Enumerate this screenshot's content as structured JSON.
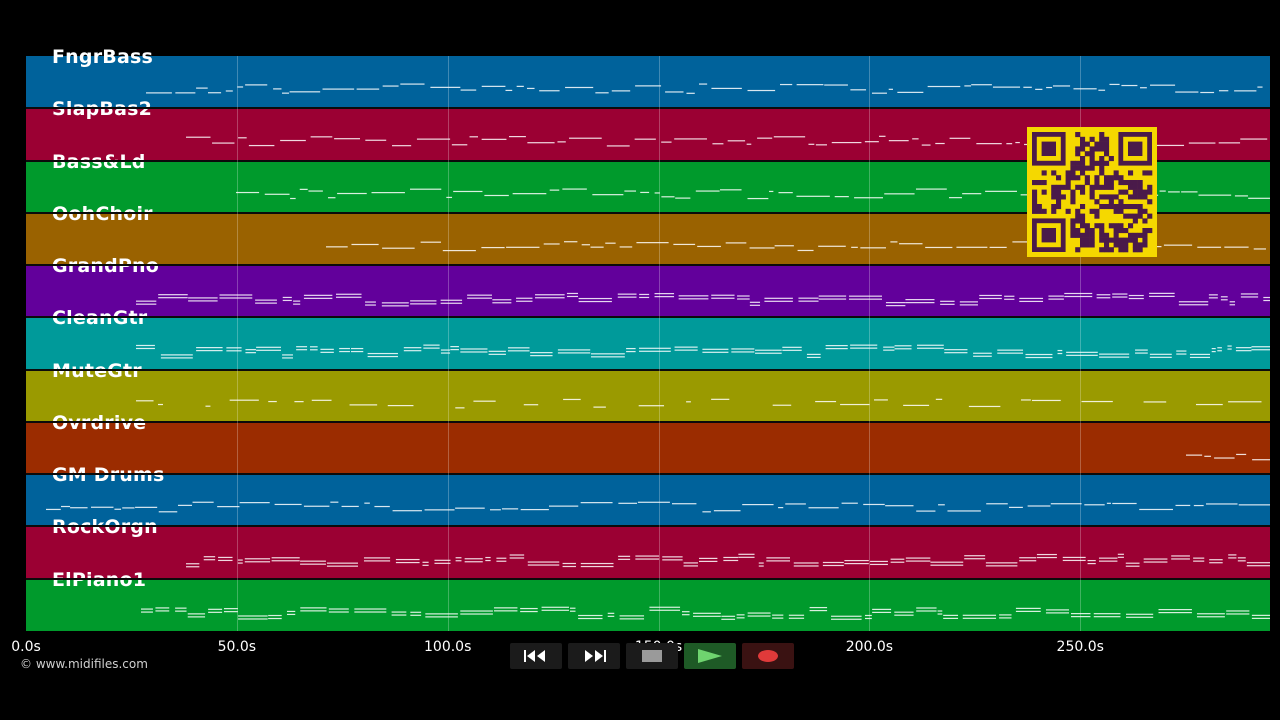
{
  "tracks": [
    {
      "name": "FngrBass",
      "color": "#00629b"
    },
    {
      "name": "SlapBas2",
      "color": "#9b0033"
    },
    {
      "name": "Bass&Ld",
      "color": "#009a2c"
    },
    {
      "name": "OohChoir",
      "color": "#9a6200"
    },
    {
      "name": "GrandPno",
      "color": "#62009b"
    },
    {
      "name": "CleanGtr",
      "color": "#009a9a"
    },
    {
      "name": "MuteGtr",
      "color": "#9a9a00"
    },
    {
      "name": "Ovrdrive",
      "color": "#9b2c00"
    },
    {
      "name": "GM Drums",
      "color": "#00629b"
    },
    {
      "name": "RockOrgn",
      "color": "#9b0033"
    },
    {
      "name": "ElPiano1",
      "color": "#009a2c"
    }
  ],
  "timeline": {
    "ticks": [
      "0.0s",
      "50.0s",
      "100.0s",
      "150.0s",
      "200.0s",
      "250.0s"
    ],
    "visible_seconds": 295
  },
  "copyright": "© www.midifiles.com",
  "transport": {
    "buttons": [
      {
        "name": "rewind-button",
        "icon": "rewind-icon"
      },
      {
        "name": "fast-forward-button",
        "icon": "fast-forward-icon"
      },
      {
        "name": "stop-button",
        "icon": "stop-icon"
      },
      {
        "name": "play-button",
        "icon": "play-icon",
        "accent": "#2e8b3a"
      },
      {
        "name": "record-button",
        "icon": "record-icon",
        "accent": "#d02a2a"
      }
    ]
  },
  "qr_colors": {
    "fg": "#4a1a4a",
    "bg": "#f5d800"
  }
}
